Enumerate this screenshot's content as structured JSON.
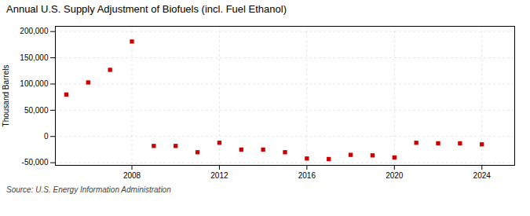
{
  "chart_data": {
    "type": "scatter",
    "title": "Annual U.S. Supply Adjustment of Biofuels (incl. Fuel Ethanol)",
    "ylabel": "Thousand Barrels",
    "caption": "Source: U.S. Energy Information Administration",
    "x": [
      2005,
      2006,
      2007,
      2008,
      2009,
      2010,
      2011,
      2012,
      2013,
      2014,
      2015,
      2016,
      2017,
      2018,
      2019,
      2020,
      2021,
      2022,
      2023,
      2024
    ],
    "values": [
      80000,
      103000,
      127000,
      181000,
      -18000,
      -18000,
      -30000,
      -12000,
      -25000,
      -25000,
      -30000,
      -42000,
      -43000,
      -35000,
      -36000,
      -40000,
      -12000,
      -13000,
      -13000,
      -15000
    ],
    "color": "#CC0000",
    "marker": "square",
    "xlim": [
      2004.5,
      2025.5
    ],
    "xticks": [
      2008,
      2012,
      2016,
      2020,
      2024
    ],
    "ylim": [
      -55000,
      210000
    ],
    "yticks": [
      {
        "value": -50000,
        "label": "-50,000"
      },
      0,
      {
        "value": 50000,
        "label": "50,000"
      },
      {
        "value": 100000,
        "label": "100,000"
      },
      {
        "value": 150000,
        "label": "150,000"
      },
      {
        "value": 200000,
        "label": "200,000"
      }
    ],
    "grid": true
  }
}
